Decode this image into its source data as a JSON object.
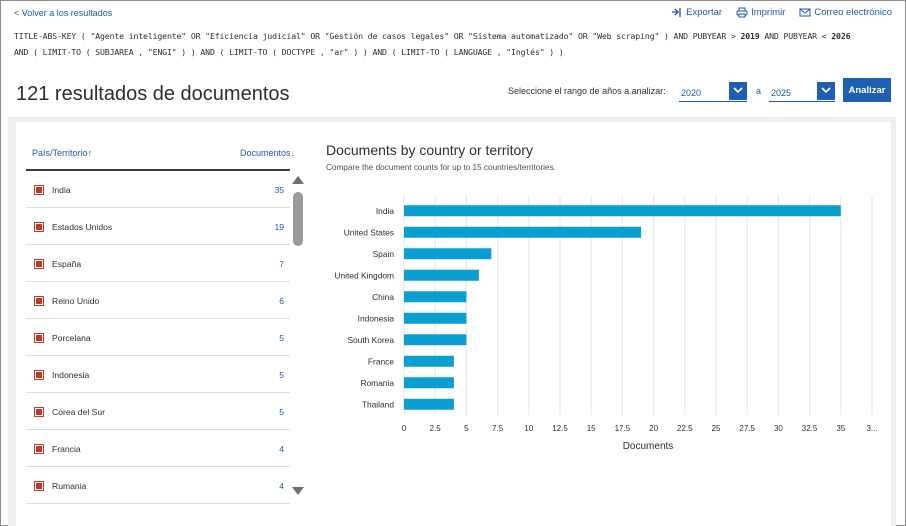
{
  "nav": {
    "back_label": "< Volver a los resultados",
    "export_label": "Exportar",
    "print_label": "Imprimir",
    "email_label": "Correo electrónico"
  },
  "query": {
    "line1_a": "TITLE-ABS-KEY ( \"Agente inteligente\" OR \"Eficiencia judicial\" OR \"Gestión de casos legales\" OR \"Sistema automatizado\" OR \"Web scraping\" ) AND PUBYEAR > ",
    "line1_year1": "2019",
    "line1_b": " AND PUBYEAR < ",
    "line1_year2": "2026",
    "line2": "AND ( LIMIT-TO ( SUBJAREA , \"ENGI\" ) ) AND ( LIMIT-TO ( DOCTYPE , \"ar\" ) ) AND ( LIMIT-TO ( LANGUAGE , \"Inglés\" ) )"
  },
  "results": {
    "title": "121 resultados de documentos",
    "range_label": "Seleccione el rango de años a analizar:",
    "year_from": "2020",
    "range_sep": "a",
    "year_to": "2025",
    "analyze_label": "Analizar"
  },
  "table": {
    "col_country": "País/Territorio",
    "col_docs": "Documentos",
    "rows": [
      {
        "name": "India",
        "count": "35"
      },
      {
        "name": "Estados Unidos",
        "count": "19"
      },
      {
        "name": "España",
        "count": "7"
      },
      {
        "name": "Reino Unido",
        "count": "6"
      },
      {
        "name": "Porcelana",
        "count": "5"
      },
      {
        "name": "Indonesia",
        "count": "5"
      },
      {
        "name": "Corea del Sur",
        "count": "5"
      },
      {
        "name": "Francia",
        "count": "4"
      },
      {
        "name": "Rumania",
        "count": "4"
      }
    ]
  },
  "colors": {
    "bar": "#0a9fd0",
    "link": "#1a5aa8",
    "button": "#1f5fb3",
    "check": "#c0392b"
  },
  "chart_data": {
    "type": "bar",
    "orientation": "horizontal",
    "title": "Documents by country or territory",
    "subtitle": "Compare the document counts for up to 15 countries/territories.",
    "xlabel": "Documents",
    "ylabel": "",
    "categories": [
      "India",
      "United States",
      "Spain",
      "United Kingdom",
      "China",
      "Indonesia",
      "South Korea",
      "France",
      "Romania",
      "Thailand"
    ],
    "values": [
      35,
      19,
      7,
      6,
      5,
      5,
      5,
      4,
      4,
      4
    ],
    "xticks": [
      "0",
      "2.5",
      "5",
      "7.5",
      "10",
      "12.5",
      "15",
      "17.5",
      "20",
      "22.5",
      "25",
      "27.5",
      "30",
      "32.5",
      "35",
      "3..."
    ],
    "xlim": [
      0,
      37.5
    ],
    "grid": true
  }
}
